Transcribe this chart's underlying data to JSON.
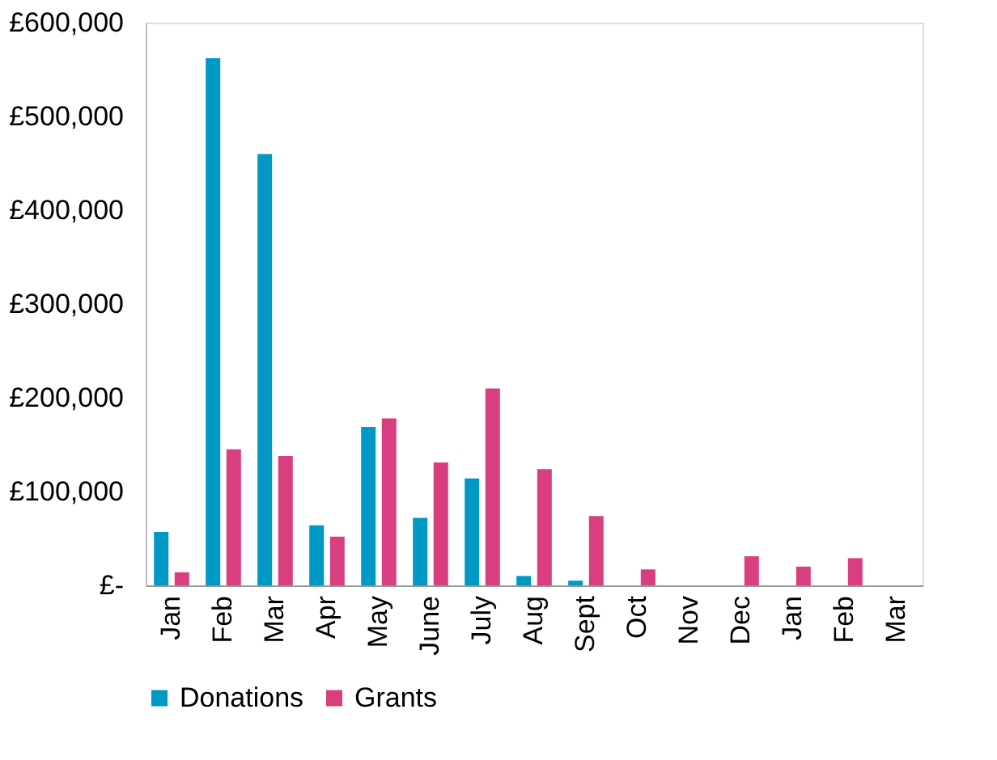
{
  "chart_data": {
    "type": "bar",
    "categories": [
      "Jan",
      "Feb",
      "Mar",
      "Apr",
      "May",
      "June",
      "July",
      "Aug",
      "Sept",
      "Oct",
      "Nov",
      "Dec",
      "Jan",
      "Feb",
      "Mar"
    ],
    "series": [
      {
        "name": "Donations",
        "color": "#0098c4",
        "values": [
          57000,
          562000,
          460000,
          64000,
          169000,
          72000,
          114000,
          10000,
          5000,
          0,
          0,
          0,
          0,
          0,
          0
        ]
      },
      {
        "name": "Grants",
        "color": "#d93f80",
        "values": [
          14000,
          145000,
          138000,
          52000,
          178000,
          131000,
          210000,
          124000,
          74000,
          17000,
          0,
          31000,
          20000,
          29000,
          0
        ]
      }
    ],
    "ylim": [
      0,
      600000
    ],
    "yticks": [
      {
        "value": 0,
        "label": "£-"
      },
      {
        "value": 100000,
        "label": "£100,000"
      },
      {
        "value": 200000,
        "label": "£200,000"
      },
      {
        "value": 300000,
        "label": "£300,000"
      },
      {
        "value": 400000,
        "label": "£400,000"
      },
      {
        "value": 500000,
        "label": "£500,000"
      },
      {
        "value": 600000,
        "label": "£600,000"
      }
    ],
    "grid": false,
    "legend": "bottom"
  }
}
